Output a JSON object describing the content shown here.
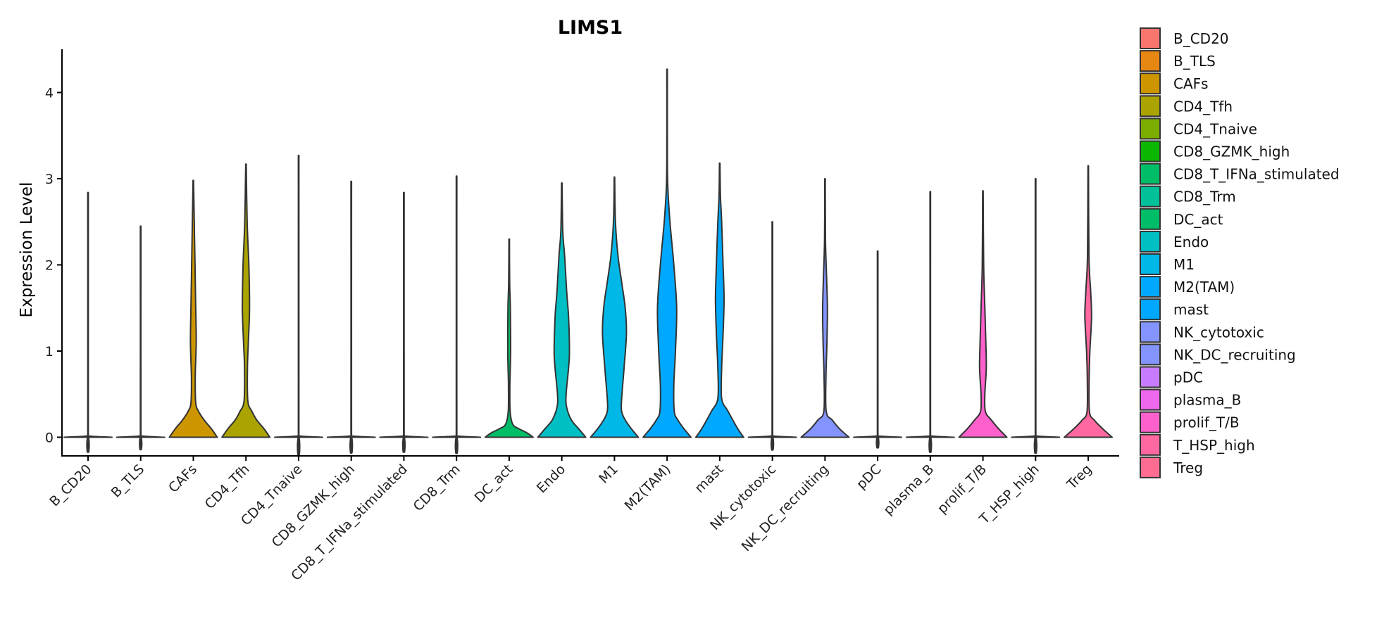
{
  "chart_data": {
    "type": "violin",
    "title": "LIMS1",
    "xlabel": "",
    "ylabel": "Expression Level",
    "ylim": [
      -0.22,
      4.5
    ],
    "yticks": [
      0,
      1,
      2,
      3,
      4
    ],
    "grid": false,
    "legend_position": "right",
    "categories": [
      "B_CD20",
      "B_TLS",
      "CAFs",
      "CD4_Tfh",
      "CD4_Tnaive",
      "CD8_GZMK_high",
      "CD8_T_IFNa_stimulated",
      "CD8_Trm",
      "DC_act",
      "Endo",
      "M1",
      "M2(TAM)",
      "mast",
      "NK_cytotoxic",
      "NK_DC_recruiting",
      "pDC",
      "plasma_B",
      "prolif_T/B",
      "T_HSP_high",
      "Treg"
    ],
    "colors": [
      "#F8766D",
      "#E68613",
      "#CD9600",
      "#ABA300",
      "#7CAE00",
      "#0CB702",
      "#00BE67",
      "#00C19A",
      "#00BE67",
      "#00BFC4",
      "#00B8E7",
      "#00A9FF",
      "#00A9FF",
      "#8494FF",
      "#8494FF",
      "#C77CFF",
      "#ED68ED",
      "#FF61CC",
      "#FF68A1",
      "#FF68A1"
    ],
    "legend_colors": [
      "#F8766D",
      "#E68613",
      "#CD9600",
      "#ABA300",
      "#7CAE00",
      "#0CB702",
      "#00BE67",
      "#00C19A",
      "#00BE67",
      "#00BFC4",
      "#00B8E7",
      "#00A9FF",
      "#00A9FF",
      "#8494FF",
      "#8494FF",
      "#C77CFF",
      "#ED68ED",
      "#FF61CC",
      "#FF68A1",
      "#FF6C91"
    ],
    "max_values": [
      2.84,
      2.45,
      2.98,
      3.17,
      3.27,
      2.97,
      2.84,
      3.03,
      2.3,
      2.95,
      3.02,
      4.27,
      3.18,
      2.5,
      3.0,
      2.16,
      2.85,
      2.86,
      3.0,
      3.15
    ],
    "density_profiles": {
      "zero": [
        [
          0,
          1
        ],
        [
          0.015,
          0.03
        ],
        [
          0.04,
          0.012
        ]
      ],
      "CAFs": [
        [
          0,
          1
        ],
        [
          0.1,
          0.75
        ],
        [
          0.2,
          0.45
        ],
        [
          0.3,
          0.22
        ],
        [
          0.4,
          0.1
        ],
        [
          0.7,
          0.08
        ],
        [
          1.1,
          0.12
        ],
        [
          1.5,
          0.1
        ],
        [
          2.0,
          0.07
        ],
        [
          2.5,
          0.04
        ],
        [
          2.98,
          0.01
        ]
      ],
      "CD4_Tfh": [
        [
          0,
          1
        ],
        [
          0.1,
          0.75
        ],
        [
          0.2,
          0.45
        ],
        [
          0.3,
          0.25
        ],
        [
          0.42,
          0.08
        ],
        [
          0.8,
          0.06
        ],
        [
          1.1,
          0.1
        ],
        [
          1.5,
          0.15
        ],
        [
          2.0,
          0.12
        ],
        [
          2.5,
          0.05
        ],
        [
          3.17,
          0.01
        ]
      ],
      "DC_act": [
        [
          0,
          1
        ],
        [
          0.05,
          0.75
        ],
        [
          0.1,
          0.4
        ],
        [
          0.15,
          0.15
        ],
        [
          0.3,
          0.04
        ],
        [
          0.6,
          0.03
        ],
        [
          1.0,
          0.06
        ],
        [
          1.5,
          0.05
        ],
        [
          1.8,
          0.02
        ],
        [
          2.3,
          0.01
        ]
      ],
      "Endo": [
        [
          0,
          1
        ],
        [
          0.1,
          0.7
        ],
        [
          0.2,
          0.4
        ],
        [
          0.35,
          0.2
        ],
        [
          0.5,
          0.18
        ],
        [
          0.8,
          0.28
        ],
        [
          1.0,
          0.32
        ],
        [
          1.4,
          0.28
        ],
        [
          1.7,
          0.2
        ],
        [
          2.1,
          0.12
        ],
        [
          2.4,
          0.04
        ],
        [
          2.95,
          0.01
        ]
      ],
      "M1": [
        [
          0,
          1
        ],
        [
          0.1,
          0.7
        ],
        [
          0.2,
          0.45
        ],
        [
          0.3,
          0.3
        ],
        [
          0.45,
          0.3
        ],
        [
          0.8,
          0.4
        ],
        [
          1.2,
          0.5
        ],
        [
          1.5,
          0.45
        ],
        [
          1.8,
          0.3
        ],
        [
          2.1,
          0.15
        ],
        [
          2.5,
          0.04
        ],
        [
          3.02,
          0.01
        ]
      ],
      "M2(TAM)": [
        [
          0,
          1
        ],
        [
          0.1,
          0.7
        ],
        [
          0.2,
          0.45
        ],
        [
          0.3,
          0.3
        ],
        [
          0.6,
          0.28
        ],
        [
          1.0,
          0.35
        ],
        [
          1.5,
          0.4
        ],
        [
          2.0,
          0.28
        ],
        [
          2.5,
          0.12
        ],
        [
          2.9,
          0.03
        ],
        [
          3.3,
          0.01
        ],
        [
          4.27,
          0.01
        ]
      ],
      "mast": [
        [
          0,
          1
        ],
        [
          0.1,
          0.75
        ],
        [
          0.3,
          0.35
        ],
        [
          0.45,
          0.08
        ],
        [
          0.8,
          0.08
        ],
        [
          1.2,
          0.14
        ],
        [
          1.6,
          0.18
        ],
        [
          2.0,
          0.14
        ],
        [
          2.5,
          0.08
        ],
        [
          2.8,
          0.03
        ],
        [
          3.18,
          0.01
        ]
      ],
      "NK_DC_recruiting": [
        [
          0,
          1
        ],
        [
          0.1,
          0.6
        ],
        [
          0.2,
          0.3
        ],
        [
          0.3,
          0.05
        ],
        [
          0.7,
          0.04
        ],
        [
          1.1,
          0.08
        ],
        [
          1.5,
          0.1
        ],
        [
          1.9,
          0.06
        ],
        [
          2.3,
          0.02
        ],
        [
          3.0,
          0.01
        ]
      ],
      "prolif_T/B": [
        [
          0,
          1
        ],
        [
          0.1,
          0.65
        ],
        [
          0.2,
          0.35
        ],
        [
          0.3,
          0.1
        ],
        [
          0.5,
          0.08
        ],
        [
          0.8,
          0.14
        ],
        [
          1.1,
          0.12
        ],
        [
          1.5,
          0.08
        ],
        [
          2.0,
          0.03
        ],
        [
          2.86,
          0.01
        ]
      ],
      "Treg": [
        [
          0,
          1
        ],
        [
          0.1,
          0.6
        ],
        [
          0.2,
          0.25
        ],
        [
          0.3,
          0.05
        ],
        [
          0.7,
          0.04
        ],
        [
          1.0,
          0.07
        ],
        [
          1.4,
          0.14
        ],
        [
          1.7,
          0.1
        ],
        [
          2.1,
          0.03
        ],
        [
          3.15,
          0.01
        ]
      ]
    }
  }
}
